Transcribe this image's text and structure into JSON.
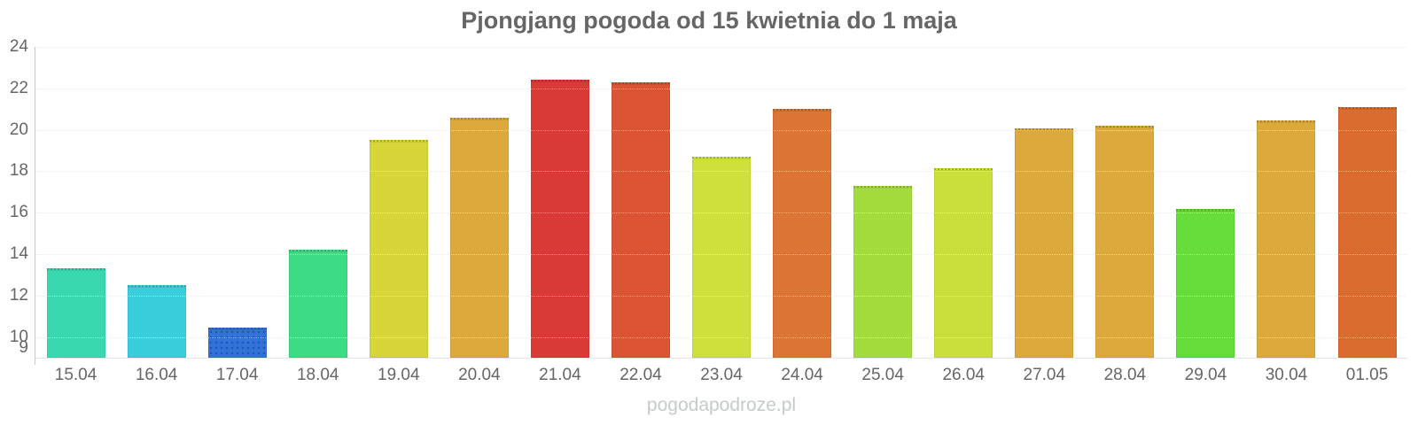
{
  "page": {
    "title": "Pjongjang pogoda od 15 kwietnia do 1 maja",
    "watermark": "pogodapodroze.pl"
  },
  "chart_data": {
    "type": "bar",
    "title": "Pjongjang pogoda od 15 kwietnia do 1 maja",
    "xlabel": "",
    "ylabel": "",
    "ylim": [
      9,
      24
    ],
    "yticks": [
      24,
      22,
      20,
      18,
      16,
      14,
      12,
      10,
      9
    ],
    "grid": "horizontal-dotted",
    "legend": "none",
    "categories": [
      "15.04",
      "16.04",
      "17.04",
      "18.04",
      "19.04",
      "20.04",
      "21.04",
      "22.04",
      "23.04",
      "24.04",
      "25.04",
      "26.04",
      "27.04",
      "28.04",
      "29.04",
      "30.04",
      "01.05"
    ],
    "values": [
      13.3,
      12.5,
      10.45,
      14.2,
      19.5,
      20.6,
      22.4,
      22.3,
      18.7,
      21.0,
      17.3,
      18.15,
      20.05,
      20.2,
      16.2,
      20.45,
      21.1
    ],
    "colors": [
      "#38d9ae",
      "#3acedd",
      "#3173d9",
      "#3edb85",
      "#d6d53a",
      "#dca93c",
      "#d93a35",
      "#db5434",
      "#cde03c",
      "#dc7533",
      "#a4dd3b",
      "#cbdf3c",
      "#dca93c",
      "#dca93c",
      "#64dd38",
      "#dca93c",
      "#d96c2e"
    ],
    "pattern_dotted_bar_indices": [
      2
    ]
  }
}
